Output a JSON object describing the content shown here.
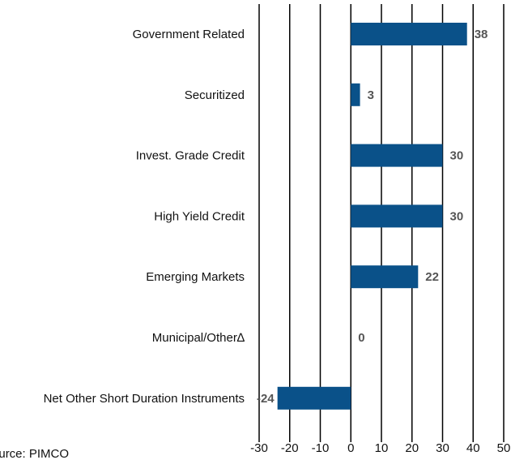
{
  "chart_data": {
    "type": "barh",
    "categories": [
      "Government Related",
      "Securitized",
      "Invest. Grade Credit",
      "High Yield Credit",
      "Emerging Markets",
      "Municipal/Other∆",
      "Net Other Short Duration Instruments"
    ],
    "values": [
      38,
      3,
      30,
      30,
      22,
      0,
      -24
    ],
    "color": "#0a5189",
    "xlim": [
      -30,
      50
    ],
    "xticks": [
      -30,
      -20,
      -10,
      0,
      10,
      20,
      30,
      40,
      50
    ],
    "grid": true,
    "source": "Source: PIMCO"
  }
}
